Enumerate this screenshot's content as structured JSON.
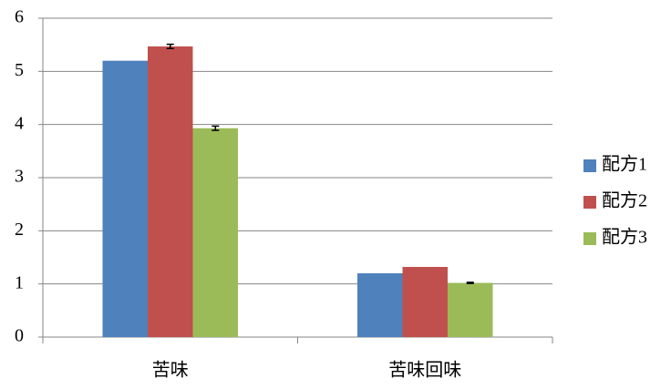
{
  "chart_data": {
    "type": "bar",
    "categories": [
      "苦味",
      "苦味回味"
    ],
    "series": [
      {
        "name": "配方1",
        "color": "#4f81bd",
        "values": [
          5.2,
          1.2
        ]
      },
      {
        "name": "配方2",
        "color": "#c0504d",
        "values": [
          5.47,
          1.32
        ],
        "errors": [
          0.04,
          null
        ]
      },
      {
        "name": "配方3",
        "color": "#9bbb59",
        "values": [
          3.93,
          1.02
        ],
        "errors": [
          0.04,
          0.01
        ]
      }
    ],
    "ylim": [
      0,
      6
    ],
    "yticks": [
      0,
      1,
      2,
      3,
      4,
      5,
      6
    ],
    "grid": true,
    "legend": "right"
  }
}
